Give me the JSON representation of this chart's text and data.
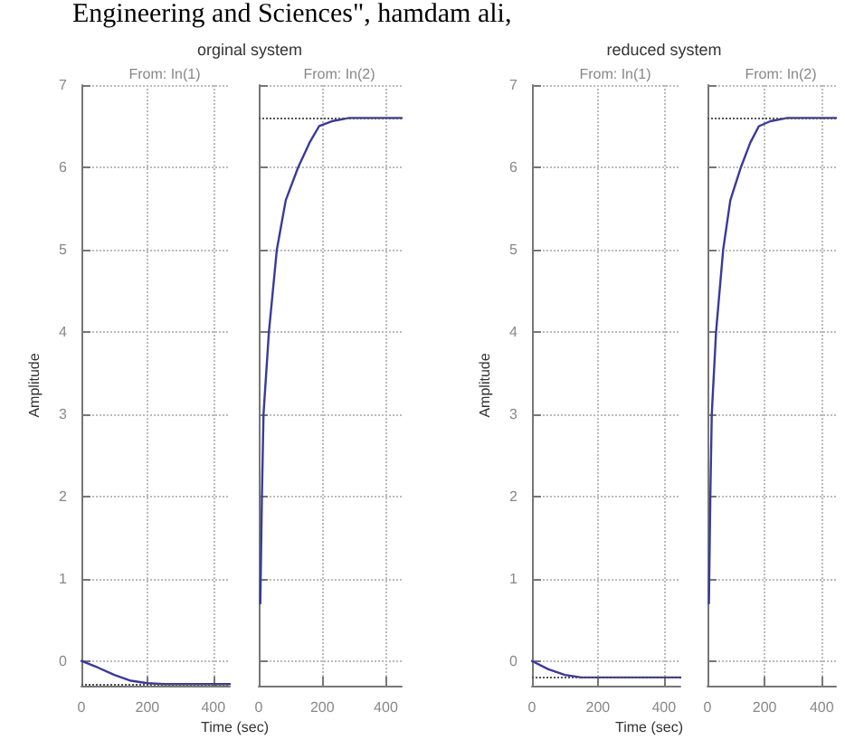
{
  "chart_data": [
    {
      "type": "line",
      "title": "orginal system",
      "subtitle": "From: In(1)",
      "xlabel": "Time (sec)",
      "ylabel": "Amplitude",
      "annotations": [
        "Engineering and Sciences\", hamdam ali,"
      ],
      "grid": true,
      "line_style": "solid",
      "marker": "none",
      "xlim": [
        0,
        450
      ],
      "xticks": [
        0,
        200,
        400
      ],
      "ylim": [
        -0.3,
        7
      ],
      "yticks": [
        0,
        1,
        2,
        3,
        4,
        5,
        6,
        7
      ],
      "ref_lines": [
        {
          "axis": "y",
          "value": -0.28,
          "label": null,
          "line_style": "dotted",
          "color": "#555555"
        }
      ],
      "series": [
        {
          "color": "#3a3a9a",
          "x": [
            0,
            50,
            100,
            150,
            200,
            250,
            450
          ],
          "values": [
            0,
            -0.08,
            -0.17,
            -0.24,
            -0.27,
            -0.28,
            -0.28
          ]
        }
      ]
    },
    {
      "type": "line",
      "subtitle": "From: In(2)",
      "tick_labels": "x",
      "grid": true,
      "line_style": "solid",
      "marker": "none",
      "xlim": [
        0,
        450
      ],
      "xticks": [
        0,
        200,
        400
      ],
      "ylim": [
        -0.3,
        7
      ],
      "yticks": [
        0,
        1,
        2,
        3,
        4,
        5,
        6,
        7
      ],
      "ref_lines": [
        {
          "axis": "y",
          "value": 6.6,
          "label": null,
          "line_style": "dotted",
          "color": "#555555"
        }
      ],
      "series": [
        {
          "color": "#3a3a9a",
          "x": [
            5,
            10,
            15,
            32,
            57,
            85,
            124,
            160,
            190,
            230,
            285,
            450
          ],
          "values": [
            0.7,
            2,
            3,
            4,
            5,
            5.6,
            6,
            6.3,
            6.5,
            6.56,
            6.6,
            6.6
          ]
        }
      ]
    },
    {
      "type": "line",
      "title": "reduced system",
      "subtitle": "From: In(1)",
      "xlabel": "Time (sec)",
      "ylabel": "Amplitude",
      "grid": true,
      "line_style": "solid",
      "marker": "none",
      "xlim": [
        0,
        450
      ],
      "xticks": [
        0,
        200,
        400
      ],
      "ylim": [
        -0.3,
        7
      ],
      "yticks": [
        0,
        1,
        2,
        3,
        4,
        5,
        6,
        7
      ],
      "ref_lines": [
        {
          "axis": "y",
          "value": -0.2,
          "label": null,
          "line_style": "dotted",
          "color": "#555555"
        }
      ],
      "series": [
        {
          "color": "#3a3a9a",
          "x": [
            0,
            50,
            100,
            150,
            200,
            450
          ],
          "values": [
            0,
            -0.1,
            -0.17,
            -0.2,
            -0.2,
            -0.2
          ]
        }
      ]
    },
    {
      "type": "line",
      "subtitle": "From: In(2)",
      "tick_labels": "x",
      "grid": true,
      "line_style": "solid",
      "marker": "none",
      "xlim": [
        0,
        450
      ],
      "xticks": [
        0,
        200,
        400
      ],
      "ylim": [
        -0.3,
        7
      ],
      "yticks": [
        0,
        1,
        2,
        3,
        4,
        5,
        6,
        7
      ],
      "ref_lines": [
        {
          "axis": "y",
          "value": 6.6,
          "label": null,
          "line_style": "dotted",
          "color": "#555555"
        }
      ],
      "series": [
        {
          "color": "#3a3a9a",
          "x": [
            5,
            10,
            15,
            30,
            55,
            80,
            117,
            150,
            180,
            220,
            280,
            450
          ],
          "values": [
            0.7,
            2,
            3,
            4,
            5,
            5.6,
            6,
            6.3,
            6.5,
            6.56,
            6.6,
            6.6
          ]
        }
      ]
    }
  ]
}
